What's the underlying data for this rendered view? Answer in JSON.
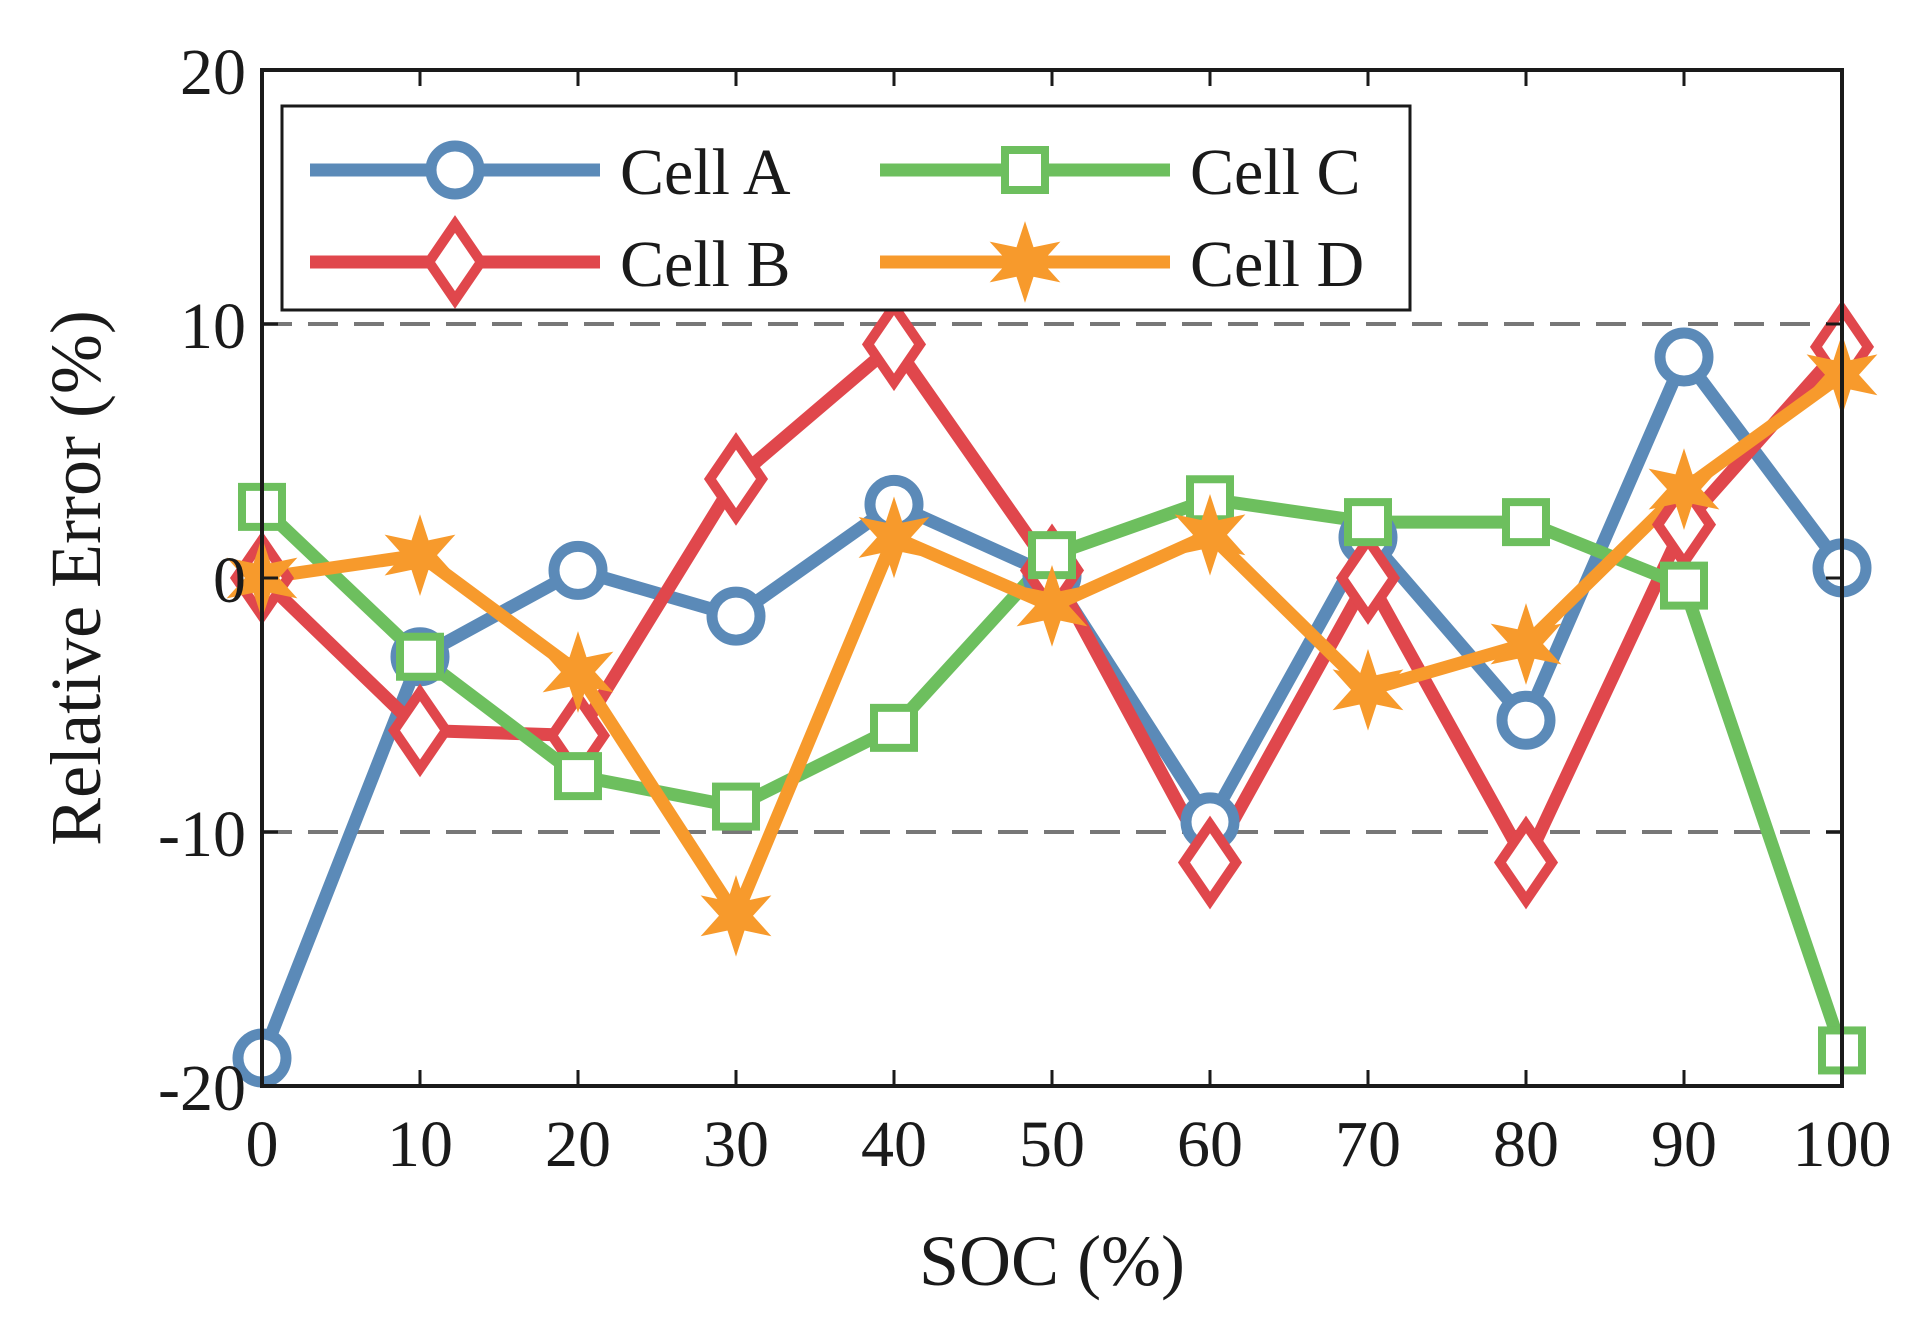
{
  "chart_data": {
    "type": "line",
    "x": [
      0,
      10,
      20,
      30,
      40,
      50,
      60,
      70,
      80,
      90,
      100
    ],
    "xlabel": "SOC (%)",
    "ylabel": "Relative Error (%)",
    "xlim": [
      0,
      100
    ],
    "ylim": [
      -20,
      20
    ],
    "xticks": [
      "0",
      "10",
      "20",
      "30",
      "40",
      "50",
      "60",
      "70",
      "80",
      "90",
      "100"
    ],
    "yticks": [
      "20",
      "10",
      "0",
      "-10",
      "-20"
    ],
    "reference_lines": [
      10,
      -10
    ],
    "grid": false,
    "legend_position": "top-left",
    "series": [
      {
        "name": "Cell A",
        "marker": "circle",
        "color": "#5b8ab8",
        "values": [
          -18.9,
          -3.1,
          0.3,
          -1.5,
          2.9,
          0.1,
          -9.6,
          1.6,
          -5.6,
          8.7,
          0.4
        ]
      },
      {
        "name": "Cell B",
        "marker": "diamond",
        "color": "#e0474c",
        "values": [
          0.0,
          -6.0,
          -6.2,
          3.9,
          9.2,
          0.3,
          -11.2,
          0.0,
          -11.2,
          2.1,
          9.1
        ]
      },
      {
        "name": "Cell C",
        "marker": "square",
        "color": "#6dbf5e",
        "values": [
          2.8,
          -3.1,
          -7.8,
          -9.0,
          -5.9,
          0.9,
          3.1,
          2.2,
          2.2,
          -0.3,
          -18.6
        ]
      },
      {
        "name": "Cell D",
        "marker": "star",
        "color": "#f79a2c",
        "values": [
          0.0,
          0.9,
          -3.7,
          -13.3,
          1.6,
          -1.1,
          1.7,
          -4.4,
          -2.6,
          3.5,
          8.0
        ]
      }
    ]
  }
}
